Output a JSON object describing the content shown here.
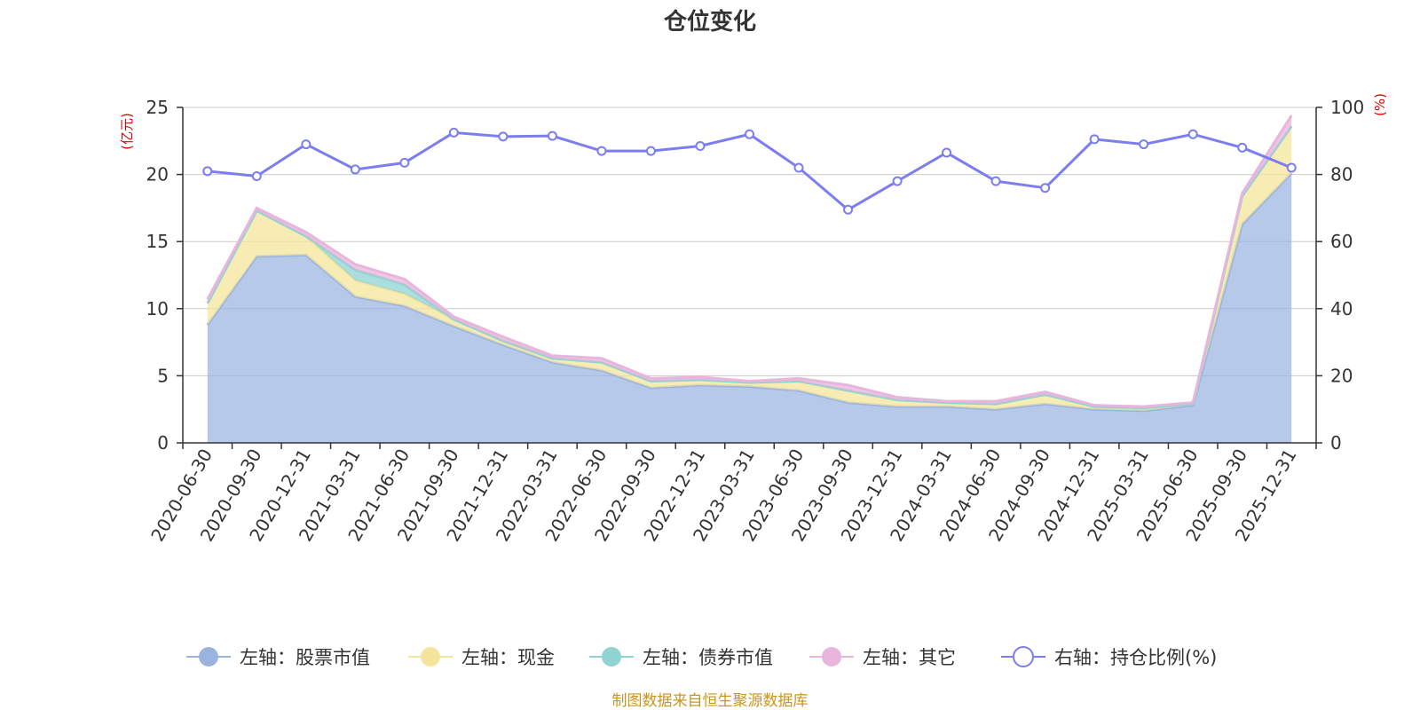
{
  "chart_data": {
    "type": "area",
    "title": "仓位变化",
    "left_axis_unit": "(亿元)",
    "right_axis_unit": "(%)",
    "ylim_left": [
      0,
      25
    ],
    "ylim_right": [
      0,
      100
    ],
    "y_ticks_left": [
      "0",
      "5",
      "10",
      "15",
      "20",
      "25"
    ],
    "y_ticks_right": [
      "0",
      "20",
      "40",
      "60",
      "80",
      "100"
    ],
    "grid": true,
    "legend_position": "bottom",
    "categories": [
      "2020-06-30",
      "2020-09-30",
      "2020-12-31",
      "2021-03-31",
      "2021-06-30",
      "2021-09-30",
      "2021-12-31",
      "2022-03-31",
      "2022-06-30",
      "2022-09-30",
      "2022-12-31",
      "2023-03-31",
      "2023-06-30",
      "2023-09-30",
      "2023-12-31",
      "2024-03-31",
      "2024-06-30",
      "2024-09-30",
      "2024-12-31",
      "2025-03-31",
      "2025-06-30",
      "2025-09-30",
      "2025-12-31"
    ],
    "series": [
      {
        "name": "左轴：股票市值",
        "axis": "left",
        "color": "#9ab4e0",
        "values": [
          8.8,
          13.9,
          14.0,
          10.9,
          10.2,
          8.7,
          7.3,
          6.0,
          5.4,
          4.1,
          4.3,
          4.2,
          3.9,
          3.0,
          2.7,
          2.7,
          2.5,
          2.9,
          2.5,
          2.4,
          2.8,
          16.3,
          20.1
        ]
      },
      {
        "name": "左轴：现金",
        "axis": "left",
        "color": "#f5e59c",
        "values": [
          1.6,
          3.4,
          1.4,
          1.2,
          0.9,
          0.5,
          0.3,
          0.3,
          0.6,
          0.5,
          0.4,
          0.3,
          0.7,
          0.9,
          0.5,
          0.3,
          0.4,
          0.7,
          0.2,
          0.2,
          0.1,
          2.1,
          3.5
        ]
      },
      {
        "name": "左轴：债券市值",
        "axis": "left",
        "color": "#8fd3d3",
        "values": [
          0,
          0,
          0,
          0.8,
          0.7,
          0,
          0,
          0,
          0,
          0,
          0,
          0,
          0,
          0,
          0,
          0,
          0,
          0,
          0,
          0,
          0,
          0,
          0
        ]
      },
      {
        "name": "左轴：其它",
        "axis": "left",
        "color": "#e8b5dc",
        "values": [
          0.3,
          0.2,
          0.3,
          0.4,
          0.4,
          0.2,
          0.3,
          0.2,
          0.3,
          0.2,
          0.2,
          0.1,
          0.2,
          0.4,
          0.2,
          0.1,
          0.2,
          0.2,
          0.1,
          0.1,
          0.1,
          0.2,
          0.8
        ]
      },
      {
        "name": "右轴：持仓比例(%)",
        "axis": "right",
        "color": "#7b7df0",
        "values": [
          81,
          79.5,
          89,
          81.5,
          83.5,
          92.5,
          91.3,
          91.5,
          87,
          87,
          88.5,
          92,
          82,
          69.5,
          78,
          86.5,
          78,
          76,
          90.5,
          89,
          92,
          88,
          82
        ]
      }
    ]
  },
  "source_note": "制图数据来自恒生聚源数据库"
}
